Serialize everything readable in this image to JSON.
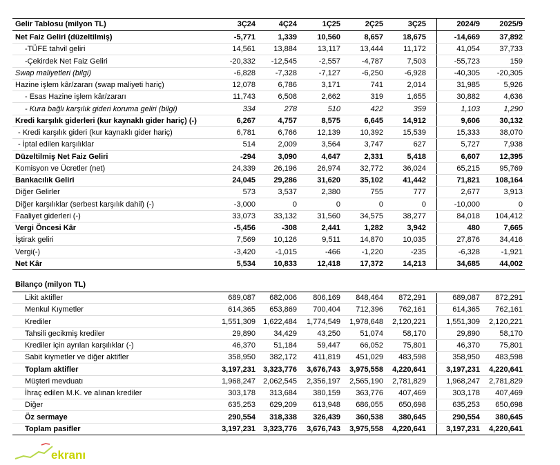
{
  "income": {
    "header": [
      "Gelir Tablosu (milyon TL)",
      "3Ç24",
      "4Ç24",
      "1Ç25",
      "2Ç25",
      "3Ç25",
      "2024/9",
      "2025/9"
    ],
    "rows": [
      {
        "label": "Net Faiz Geliri (düzeltilmiş)",
        "values": [
          "-5,771",
          "1,339",
          "10,560",
          "8,657",
          "18,675",
          "-14,669",
          "37,892"
        ]
      },
      {
        "label": "-TÜFE tahvil geliri",
        "values": [
          "14,561",
          "13,884",
          "13,117",
          "13,444",
          "11,172",
          "41,054",
          "37,733"
        ]
      },
      {
        "label": "-Çekirdek Net Faiz Geliri",
        "values": [
          "-20,332",
          "-12,545",
          "-2,557",
          "-4,787",
          "7,503",
          "-55,723",
          "159"
        ]
      },
      {
        "label": "Swap maliyetleri (bilgi)",
        "values": [
          "-6,828",
          "-7,328",
          "-7,127",
          "-6,250",
          "-6,928",
          "-40,305",
          "-20,305"
        ]
      },
      {
        "label": "Hazine işlem kâr/zararı (swap maliyeti hariç)",
        "values": [
          "12,078",
          "6,786",
          "3,171",
          "741",
          "2,014",
          "31,985",
          "5,926"
        ]
      },
      {
        "label": "- Esas Hazine işlem kâr/zararı",
        "values": [
          "11,743",
          "6,508",
          "2,662",
          "319",
          "1,655",
          "30,882",
          "4,636"
        ]
      },
      {
        "label": "- Kura bağlı karşılık gideri koruma geliri (bilgi)",
        "values": [
          "334",
          "278",
          "510",
          "422",
          "359",
          "1,103",
          "1,290"
        ]
      },
      {
        "label": "Kredi karşılık giderleri (kur kaynaklı gider hariç) (-)",
        "values": [
          "6,267",
          "4,757",
          "8,575",
          "6,645",
          "14,912",
          "9,606",
          "30,132"
        ]
      },
      {
        "label": "- Kredi karşılık gideri (kur kaynaklı gider hariç)",
        "values": [
          "6,781",
          "6,766",
          "12,139",
          "10,392",
          "15,539",
          "15,333",
          "38,070"
        ]
      },
      {
        "label": "- İptal edilen karşılıklar",
        "values": [
          "514",
          "2,009",
          "3,564",
          "3,747",
          "627",
          "5,727",
          "7,938"
        ]
      },
      {
        "label": "Düzeltilmiş Net Faiz Geliri",
        "values": [
          "-294",
          "3,090",
          "4,647",
          "2,331",
          "5,418",
          "6,607",
          "12,395"
        ]
      },
      {
        "label": "Komisyon ve Ücretler (net)",
        "values": [
          "24,339",
          "26,196",
          "26,974",
          "32,772",
          "36,024",
          "65,215",
          "95,769"
        ]
      },
      {
        "label": "Bankacılık Geliri",
        "values": [
          "24,045",
          "29,286",
          "31,620",
          "35,102",
          "41,442",
          "71,821",
          "108,164"
        ]
      },
      {
        "label": "Diğer Gelirler",
        "values": [
          "573",
          "3,537",
          "2,380",
          "755",
          "777",
          "2,677",
          "3,913"
        ]
      },
      {
        "label": "Diğer karşılıklar (serbest karşılık dahil) (-)",
        "values": [
          "-3,000",
          "0",
          "0",
          "0",
          "0",
          "-10,000",
          "0"
        ]
      },
      {
        "label": "Faaliyet giderleri (-)",
        "values": [
          "33,073",
          "33,132",
          "31,560",
          "34,575",
          "38,277",
          "84,018",
          "104,412"
        ]
      },
      {
        "label": "Vergi Öncesi Kâr",
        "values": [
          "-5,456",
          "-308",
          "2,441",
          "1,282",
          "3,942",
          "480",
          "7,665"
        ]
      },
      {
        "label": "İştirak geliri",
        "values": [
          "7,569",
          "10,126",
          "9,511",
          "14,870",
          "10,035",
          "27,876",
          "34,416"
        ]
      },
      {
        "label": "Vergi(-)",
        "values": [
          "-3,420",
          "-1,015",
          "-466",
          "-1,220",
          "-235",
          "-6,328",
          "-1,921"
        ]
      },
      {
        "label": "Net Kâr",
        "values": [
          "5,534",
          "10,833",
          "12,418",
          "17,372",
          "14,213",
          "34,685",
          "44,002"
        ]
      }
    ]
  },
  "balance": {
    "title": "Bilanço (milyon TL)",
    "rows": [
      {
        "label": "Likit aktifler",
        "values": [
          "689,087",
          "682,006",
          "806,169",
          "848,464",
          "872,291",
          "689,087",
          "872,291"
        ]
      },
      {
        "label": "Menkul Kıymetler",
        "values": [
          "614,365",
          "653,869",
          "700,404",
          "712,396",
          "762,161",
          "614,365",
          "762,161"
        ]
      },
      {
        "label": "Krediler",
        "values": [
          "1,551,309",
          "1,622,484",
          "1,774,549",
          "1,978,648",
          "2,120,221",
          "1,551,309",
          "2,120,221"
        ]
      },
      {
        "label": "Tahsili gecikmiş krediler",
        "values": [
          "29,890",
          "34,429",
          "43,250",
          "51,074",
          "58,170",
          "29,890",
          "58,170"
        ]
      },
      {
        "label": "Krediler için ayrılan karşılıklar (-)",
        "values": [
          "46,370",
          "51,184",
          "59,447",
          "66,052",
          "75,801",
          "46,370",
          "75,801"
        ]
      },
      {
        "label": "Sabit kıymetler ve diğer aktifler",
        "values": [
          "358,950",
          "382,172",
          "411,819",
          "451,029",
          "483,598",
          "358,950",
          "483,598"
        ]
      },
      {
        "label": "Toplam aktifler",
        "values": [
          "3,197,231",
          "3,323,776",
          "3,676,743",
          "3,975,558",
          "4,220,641",
          "3,197,231",
          "4,220,641"
        ]
      },
      {
        "label": "Müşteri mevduatı",
        "values": [
          "1,968,247",
          "2,062,545",
          "2,356,197",
          "2,565,190",
          "2,781,829",
          "1,968,247",
          "2,781,829"
        ]
      },
      {
        "label": "İhraç edilen M.K. ve alınan krediler",
        "values": [
          "303,178",
          "313,684",
          "380,159",
          "363,776",
          "407,469",
          "303,178",
          "407,469"
        ]
      },
      {
        "label": "Diğer",
        "values": [
          "635,253",
          "629,209",
          "613,948",
          "686,055",
          "650,698",
          "635,253",
          "650,698"
        ]
      },
      {
        "label": "Öz sermaye",
        "values": [
          "290,554",
          "318,338",
          "326,439",
          "360,538",
          "380,645",
          "290,554",
          "380,645"
        ]
      },
      {
        "label": "Toplam pasifler",
        "values": [
          "3,197,231",
          "3,323,776",
          "3,676,743",
          "3,975,558",
          "4,220,641",
          "3,197,231",
          "4,220,641"
        ]
      }
    ]
  },
  "logo": "ekranı"
}
